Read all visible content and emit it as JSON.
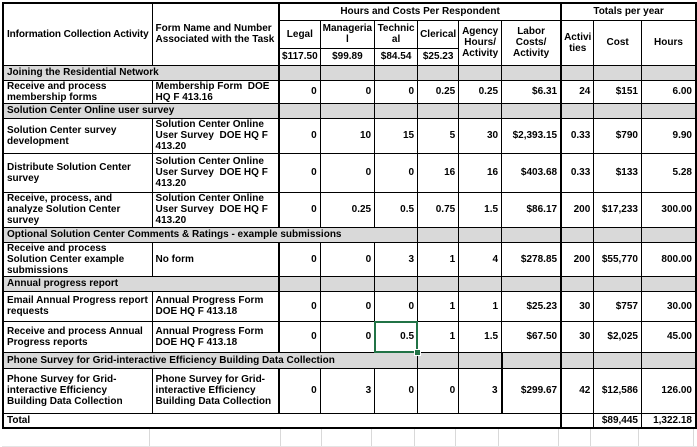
{
  "colors": {
    "section_background": "#d9d9d9",
    "selection_green": "#217346",
    "table_border": "#000000",
    "sheet_gridline": "#d9d9d9"
  },
  "header": {
    "activity_col": "Information Collection Activity",
    "form_col": "Form Name and Number Associated with the Task",
    "group_respondent": "Hours and Costs Per Respondent",
    "group_totals": "Totals per year",
    "rate_cols": [
      {
        "label": "Legal",
        "rate": "$117.50"
      },
      {
        "label": "Manageria\nl",
        "rate": "$99.89"
      },
      {
        "label": "Technic\nal",
        "rate": "$84.54"
      },
      {
        "label": "Clerical",
        "rate": "$25.23"
      }
    ],
    "agency_col": "Agency\nHours/\nActivity",
    "labor_col": "Labor\nCosts/\nActivity",
    "activities_col": "Activi\nties",
    "cost_col": "Cost",
    "hours_col": "Hours"
  },
  "rows": [
    {
      "type": "section",
      "label": "Joining the Residential Network",
      "span": 2
    },
    {
      "type": "data",
      "activity": "Receive and process membership forms",
      "form": "Membership Form  DOE HQ F 413.16",
      "values": [
        "0",
        "0",
        "0",
        "0.25",
        "0.25",
        "$6.31",
        "24",
        "$151",
        "6.00"
      ]
    },
    {
      "type": "section",
      "label": "Solution Center Online user survey",
      "span": 2
    },
    {
      "type": "data",
      "activity": "Solution Center survey development",
      "form": "Solution Center Online User Survey  DOE HQ F 413.20",
      "values": [
        "0",
        "10",
        "15",
        "5",
        "30",
        "$2,393.15",
        "0.33",
        "$790",
        "9.90"
      ]
    },
    {
      "type": "data",
      "activity": "Distribute Solution Center survey",
      "form": "Solution Center Online User Survey  DOE HQ F 413.20",
      "values": [
        "0",
        "0",
        "0",
        "16",
        "16",
        "$403.68",
        "0.33",
        "$133",
        "5.28"
      ]
    },
    {
      "type": "data",
      "activity": "Receive, process, and analyze Solution Center survey",
      "form": "Solution Center Online User Survey  DOE HQ F 413.20",
      "values": [
        "0",
        "0.25",
        "0.5",
        "0.75",
        "1.5",
        "$86.17",
        "200",
        "$17,233",
        "300.00"
      ]
    },
    {
      "type": "section",
      "label": "Optional Solution Center Comments & Ratings - example submissions",
      "span": 5
    },
    {
      "type": "data",
      "activity": "Receive and process Solution Center example submissions",
      "form": "No form",
      "values": [
        "0",
        "0",
        "3",
        "1",
        "4",
        "$278.85",
        "200",
        "$55,770",
        "800.00"
      ]
    },
    {
      "type": "section",
      "label": "Annual progress report",
      "span": 2
    },
    {
      "type": "data",
      "activity": "Email Annual Progress report requests",
      "form": "Annual Progress Form DOE HQ F 413.18",
      "values": [
        "0",
        "0",
        "0",
        "1",
        "1",
        "$25.23",
        "30",
        "$757",
        "30.00"
      ]
    },
    {
      "type": "data",
      "activity": "Receive and process Annual Progress reports",
      "form": "Annual Progress Form DOE HQ F 413.18",
      "values": [
        "0",
        "0",
        "0.5",
        "1",
        "1.5",
        "$67.50",
        "30",
        "$2,025",
        "45.00"
      ],
      "selected_col": 2
    },
    {
      "type": "section",
      "label": "Phone Survey for Grid-interactive Efficiency Building Data Collection",
      "span": 5,
      "thick_labor": true
    },
    {
      "type": "data",
      "activity": "Phone Survey for Grid-interactive Efficiency Building Data Collection",
      "form": "Phone Survey for Grid-interactive Efficiency Building Data Collection",
      "values": [
        "0",
        "3",
        "0",
        "0",
        "3",
        "$299.67",
        "42",
        "$12,586",
        "126.00"
      ],
      "thick_labor": true
    },
    {
      "type": "total",
      "label": "Total",
      "cost": "$89,445",
      "hours": "1,322.18"
    }
  ],
  "active_cell": {
    "row": "Receive and process Annual Progress reports",
    "column": "Technical",
    "value": "0.5"
  }
}
